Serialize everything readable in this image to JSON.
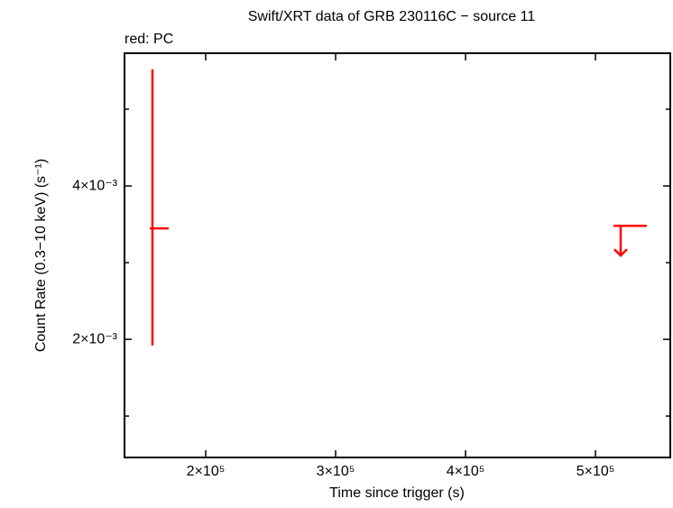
{
  "chart_data": {
    "type": "lightcurve",
    "title": "Swift/XRT data of GRB 230116C − source 11",
    "subtitle": "red: PC",
    "xlabel": "Time since trigger (s)",
    "ylabel": "Count Rate (0.3−10 keV) (s⁻¹)",
    "xlim": [
      137500,
      557600
    ],
    "ylim": [
      0.00046,
      0.00573
    ],
    "xticks": [
      {
        "value": 200000,
        "label": "2×10⁵"
      },
      {
        "value": 300000,
        "label": "3×10⁵"
      },
      {
        "value": 400000,
        "label": "4×10⁵"
      },
      {
        "value": 500000,
        "label": "5×10⁵"
      }
    ],
    "yticks": [
      {
        "value": 0.002,
        "label": "2×10⁻³"
      },
      {
        "value": 0.004,
        "label": "4×10⁻³"
      }
    ],
    "yminor": [
      0.001,
      0.003,
      0.005
    ],
    "color": "#ff0000",
    "points": {
      "x": [
        159000
      ],
      "xlo": [
        157000
      ],
      "xhi": [
        171500
      ],
      "y": [
        0.003447
      ],
      "ylo": [
        0.00192
      ],
      "yhi": [
        0.00552
      ]
    },
    "upper_limits": {
      "x": [
        519400
      ],
      "xlo": [
        513900
      ],
      "xhi": [
        539600
      ],
      "y": [
        0.00348
      ]
    }
  }
}
